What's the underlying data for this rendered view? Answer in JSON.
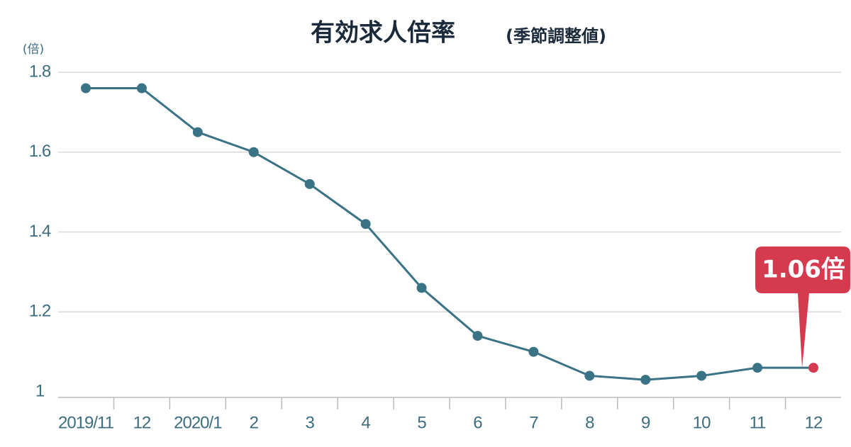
{
  "chart_data": {
    "type": "line",
    "title": "有効求人倍率",
    "subtitle": "(季節調整値)",
    "y_unit": "(倍)",
    "categories": [
      "2019/11",
      "12",
      "2020/1",
      "2",
      "3",
      "4",
      "5",
      "6",
      "7",
      "8",
      "9",
      "10",
      "11",
      "12"
    ],
    "series": [
      {
        "name": "有効求人倍率",
        "color": "#3a7286",
        "values": [
          1.76,
          1.76,
          1.65,
          1.6,
          1.52,
          1.42,
          1.26,
          1.14,
          1.1,
          1.04,
          1.03,
          1.04,
          1.06,
          1.06
        ],
        "value_labels": [
          null,
          null,
          null,
          null,
          null,
          null,
          null,
          null,
          null,
          null,
          null,
          null,
          null,
          "1.06倍"
        ]
      }
    ],
    "highlight_color": "#d63a4f",
    "ylim": [
      1,
      1.8
    ],
    "yticks": [
      1.8,
      1.6,
      1.4,
      1.2,
      1
    ],
    "grid": true
  }
}
